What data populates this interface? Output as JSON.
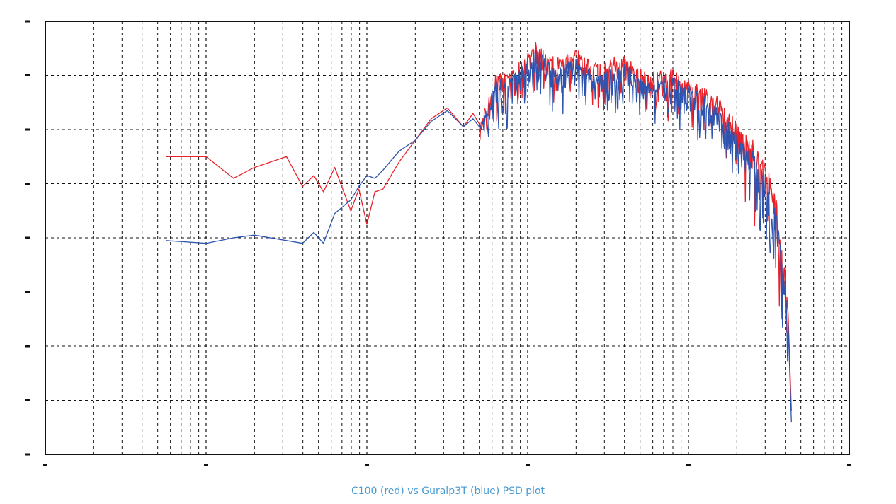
{
  "caption": "C100 (red) vs Guralp3T (blue) PSD plot",
  "chart_data": {
    "type": "line",
    "title": "",
    "xlabel": "",
    "ylabel": "",
    "x_scale": "log",
    "xlim_decades": [
      -2,
      3
    ],
    "ylim_steps": [
      0,
      8
    ],
    "grid": true,
    "legend": "none",
    "series": [
      {
        "name": "C100",
        "color": "#e8222b",
        "points": [
          [
            -1.25,
            5.5
          ],
          [
            -1.0,
            5.5
          ],
          [
            -0.83,
            5.1
          ],
          [
            -0.7,
            5.3
          ],
          [
            -0.5,
            5.5
          ],
          [
            -0.4,
            4.95
          ],
          [
            -0.33,
            5.15
          ],
          [
            -0.27,
            4.85
          ],
          [
            -0.2,
            5.3
          ],
          [
            -0.1,
            4.5
          ],
          [
            -0.05,
            4.9
          ],
          [
            0.0,
            4.25
          ],
          [
            0.05,
            4.85
          ],
          [
            0.1,
            4.9
          ],
          [
            0.2,
            5.4
          ],
          [
            0.3,
            5.8
          ],
          [
            0.4,
            6.2
          ],
          [
            0.5,
            6.4
          ],
          [
            0.6,
            6.05
          ],
          [
            0.66,
            6.3
          ],
          [
            0.7,
            6.1
          ],
          [
            0.76,
            6.6
          ],
          [
            0.8,
            7.0
          ],
          [
            0.9,
            7.05
          ],
          [
            1.0,
            7.4
          ],
          [
            1.05,
            7.6
          ],
          [
            1.15,
            7.3
          ],
          [
            1.3,
            7.45
          ],
          [
            1.45,
            7.2
          ],
          [
            1.6,
            7.35
          ],
          [
            1.75,
            7.0
          ],
          [
            1.9,
            7.1
          ],
          [
            2.0,
            6.9
          ],
          [
            2.1,
            6.75
          ],
          [
            2.2,
            6.5
          ],
          [
            2.3,
            6.1
          ],
          [
            2.4,
            5.8
          ],
          [
            2.5,
            5.2
          ],
          [
            2.55,
            4.6
          ],
          [
            2.6,
            3.4
          ],
          [
            2.62,
            2.6
          ],
          [
            2.64,
            0.8
          ]
        ]
      },
      {
        "name": "Guralp3T",
        "color": "#2d55b0",
        "points": [
          [
            -1.25,
            3.95
          ],
          [
            -1.0,
            3.9
          ],
          [
            -0.83,
            4.0
          ],
          [
            -0.7,
            4.05
          ],
          [
            -0.5,
            3.95
          ],
          [
            -0.4,
            3.9
          ],
          [
            -0.33,
            4.1
          ],
          [
            -0.27,
            3.9
          ],
          [
            -0.2,
            4.45
          ],
          [
            -0.1,
            4.7
          ],
          [
            -0.05,
            4.95
          ],
          [
            0.0,
            5.15
          ],
          [
            0.05,
            5.1
          ],
          [
            0.1,
            5.25
          ],
          [
            0.2,
            5.6
          ],
          [
            0.3,
            5.8
          ],
          [
            0.4,
            6.15
          ],
          [
            0.5,
            6.35
          ],
          [
            0.6,
            6.05
          ],
          [
            0.66,
            6.2
          ],
          [
            0.7,
            6.05
          ],
          [
            0.76,
            6.5
          ],
          [
            0.8,
            6.85
          ],
          [
            0.9,
            6.95
          ],
          [
            1.0,
            7.35
          ],
          [
            1.05,
            7.5
          ],
          [
            1.15,
            7.15
          ],
          [
            1.3,
            7.3
          ],
          [
            1.45,
            7.0
          ],
          [
            1.6,
            7.2
          ],
          [
            1.75,
            6.85
          ],
          [
            1.9,
            6.95
          ],
          [
            2.0,
            6.8
          ],
          [
            2.1,
            6.6
          ],
          [
            2.2,
            6.3
          ],
          [
            2.3,
            5.9
          ],
          [
            2.4,
            5.6
          ],
          [
            2.5,
            5.0
          ],
          [
            2.55,
            4.4
          ],
          [
            2.6,
            3.2
          ],
          [
            2.62,
            2.4
          ],
          [
            2.64,
            0.6
          ]
        ]
      }
    ]
  }
}
